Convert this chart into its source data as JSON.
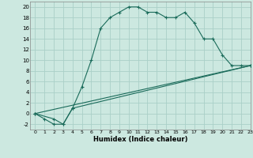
{
  "xlabel": "Humidex (Indice chaleur)",
  "bg_color": "#cce8e0",
  "grid_color": "#aad0c8",
  "line_color": "#1a6b5a",
  "line1_x": [
    0,
    1,
    2,
    3,
    4,
    5,
    6,
    7,
    8,
    9,
    10,
    11,
    12,
    13,
    14,
    15,
    16,
    17,
    18,
    19,
    20,
    21,
    22,
    23
  ],
  "line1_y": [
    0,
    -1,
    -2,
    -2,
    1,
    5,
    10,
    16,
    18,
    19,
    20,
    20,
    19,
    19,
    18,
    18,
    19,
    17,
    14,
    14,
    11,
    9,
    9,
    9
  ],
  "line2_x": [
    0,
    2,
    3,
    4,
    23
  ],
  "line2_y": [
    0,
    -1,
    -2,
    1,
    9
  ],
  "line3_x": [
    0,
    23
  ],
  "line3_y": [
    0,
    9
  ],
  "ylim": [
    -3,
    21
  ],
  "xlim": [
    -0.5,
    23
  ],
  "yticks": [
    -2,
    0,
    2,
    4,
    6,
    8,
    10,
    12,
    14,
    16,
    18,
    20
  ],
  "xticks": [
    0,
    1,
    2,
    3,
    4,
    5,
    6,
    7,
    8,
    9,
    10,
    11,
    12,
    13,
    14,
    15,
    16,
    17,
    18,
    19,
    20,
    21,
    22,
    23
  ]
}
